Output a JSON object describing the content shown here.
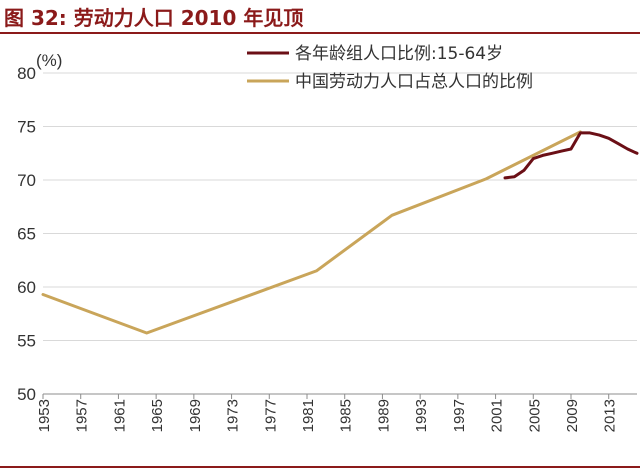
{
  "title": "图 32:  劳动力人口 2010 年见顶",
  "colors": {
    "title": "#8b1a1a",
    "series_age": "#6b0f16",
    "series_labor": "#c9a55a",
    "grid": "#d9d9d9",
    "axis": "#8c8c8c"
  },
  "chart_data": {
    "type": "line",
    "ylabel": "(%)",
    "ylim": [
      50,
      80
    ],
    "yticks": [
      50,
      55,
      60,
      65,
      70,
      75,
      80
    ],
    "xlim": [
      1953,
      2016
    ],
    "xticks": [
      "1953",
      "1957",
      "1961",
      "1965",
      "1969",
      "1973",
      "1977",
      "1981",
      "1985",
      "1989",
      "1993",
      "1997",
      "2001",
      "2005",
      "2009",
      "2013"
    ],
    "grid": "horizontal",
    "legend_position": "top-right",
    "series": [
      {
        "name": "各年龄组人口比例:15-64岁",
        "color": "#6b0f16",
        "x": [
          2002,
          2003,
          2004,
          2005,
          2006,
          2007,
          2008,
          2009,
          2010,
          2011,
          2012,
          2013,
          2014,
          2015,
          2016
        ],
        "y": [
          70.2,
          70.3,
          70.9,
          72.0,
          72.3,
          72.5,
          72.7,
          72.9,
          74.4,
          74.4,
          74.2,
          73.9,
          73.4,
          72.9,
          72.5
        ]
      },
      {
        "name": "中国劳动力人口占总人口的比例",
        "color": "#c9a55a",
        "x": [
          1953,
          1964,
          1982,
          1990,
          2000,
          2010
        ],
        "y": [
          59.3,
          55.7,
          61.5,
          66.7,
          70.1,
          74.5
        ]
      }
    ]
  }
}
